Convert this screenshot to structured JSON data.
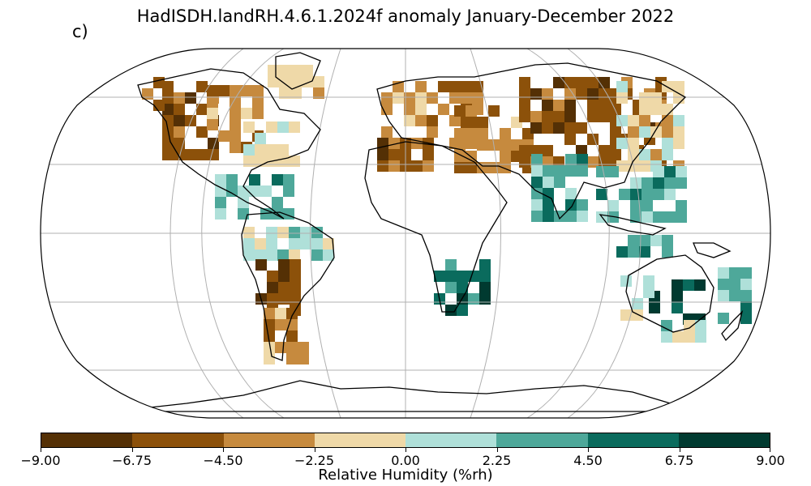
{
  "title": "HadISDH.landRH.4.6.1.2024f anomaly January-December 2022",
  "panel_label": "c)",
  "colorbar": {
    "label": "Relative Humidity (%rh)",
    "ticks": [
      "−9.00",
      "−6.75",
      "−4.50",
      "−2.25",
      "0.00",
      "2.25",
      "4.50",
      "6.75",
      "9.00"
    ],
    "colors": [
      "#543005",
      "#8c510a",
      "#c68a3e",
      "#efd9a8",
      "#afe0d9",
      "#4ea89a",
      "#0a6b5d",
      "#003a30"
    ]
  },
  "map": {
    "projection": "robinson",
    "gridlines": true,
    "anomaly_cells": [
      {
        "region": "north-america-west",
        "level": 1
      },
      {
        "region": "north-america-central",
        "level": 2
      },
      {
        "region": "north-america-east",
        "level": 3
      },
      {
        "region": "caribbean",
        "level": 5
      },
      {
        "region": "south-america-north",
        "level": 4
      },
      {
        "region": "south-america-central",
        "level": 1
      },
      {
        "region": "south-america-south",
        "level": 2
      },
      {
        "region": "europe",
        "level": 2
      },
      {
        "region": "north-africa",
        "level": 1
      },
      {
        "region": "middle-east",
        "level": 2
      },
      {
        "region": "central-asia",
        "level": 1
      },
      {
        "region": "india",
        "level": 5
      },
      {
        "region": "east-asia",
        "level": 3
      },
      {
        "region": "southeast-asia",
        "level": 5
      },
      {
        "region": "southern-africa",
        "level": 6
      },
      {
        "region": "australia-east",
        "level": 7
      },
      {
        "region": "australia-west",
        "level": 4
      },
      {
        "region": "new-zealand",
        "level": 5
      }
    ]
  }
}
